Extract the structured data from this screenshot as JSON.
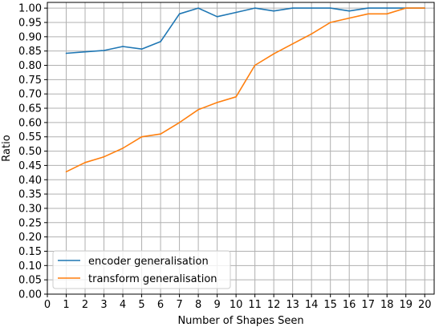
{
  "chart_data": {
    "type": "line",
    "title": "",
    "xlabel": "Number of Shapes Seen",
    "ylabel": "Ratio",
    "xlim": [
      0,
      20.5
    ],
    "ylim": [
      0.0,
      1.02
    ],
    "xticks": [
      "0",
      "1",
      "2",
      "3",
      "4",
      "5",
      "6",
      "7",
      "8",
      "9",
      "10",
      "11",
      "12",
      "13",
      "14",
      "15",
      "16",
      "17",
      "18",
      "19",
      "20"
    ],
    "yticks": [
      "0.00",
      "0.05",
      "0.10",
      "0.15",
      "0.20",
      "0.25",
      "0.30",
      "0.35",
      "0.40",
      "0.45",
      "0.50",
      "0.55",
      "0.60",
      "0.65",
      "0.70",
      "0.75",
      "0.80",
      "0.85",
      "0.90",
      "0.95",
      "1.00"
    ],
    "grid": true,
    "legend_position": "lower-left",
    "x": [
      1,
      2,
      3,
      4,
      5,
      6,
      7,
      8,
      9,
      10,
      11,
      12,
      13,
      14,
      15,
      16,
      17,
      18,
      19,
      20
    ],
    "series": [
      {
        "name": "encoder generalisation",
        "color": "#1f77b4",
        "values": [
          0.842,
          0.847,
          0.852,
          0.866,
          0.857,
          0.883,
          0.98,
          1.0,
          0.97,
          0.985,
          1.0,
          0.99,
          1.0,
          1.0,
          1.0,
          0.99,
          1.0,
          1.0,
          1.0,
          1.0
        ]
      },
      {
        "name": "transform generalisation",
        "color": "#ff7f0e",
        "values": [
          0.428,
          0.46,
          0.48,
          0.51,
          0.55,
          0.56,
          0.6,
          0.645,
          0.67,
          0.69,
          0.8,
          0.84,
          0.875,
          0.91,
          0.95,
          0.965,
          0.98,
          0.98,
          1.0,
          1.0
        ]
      }
    ]
  }
}
